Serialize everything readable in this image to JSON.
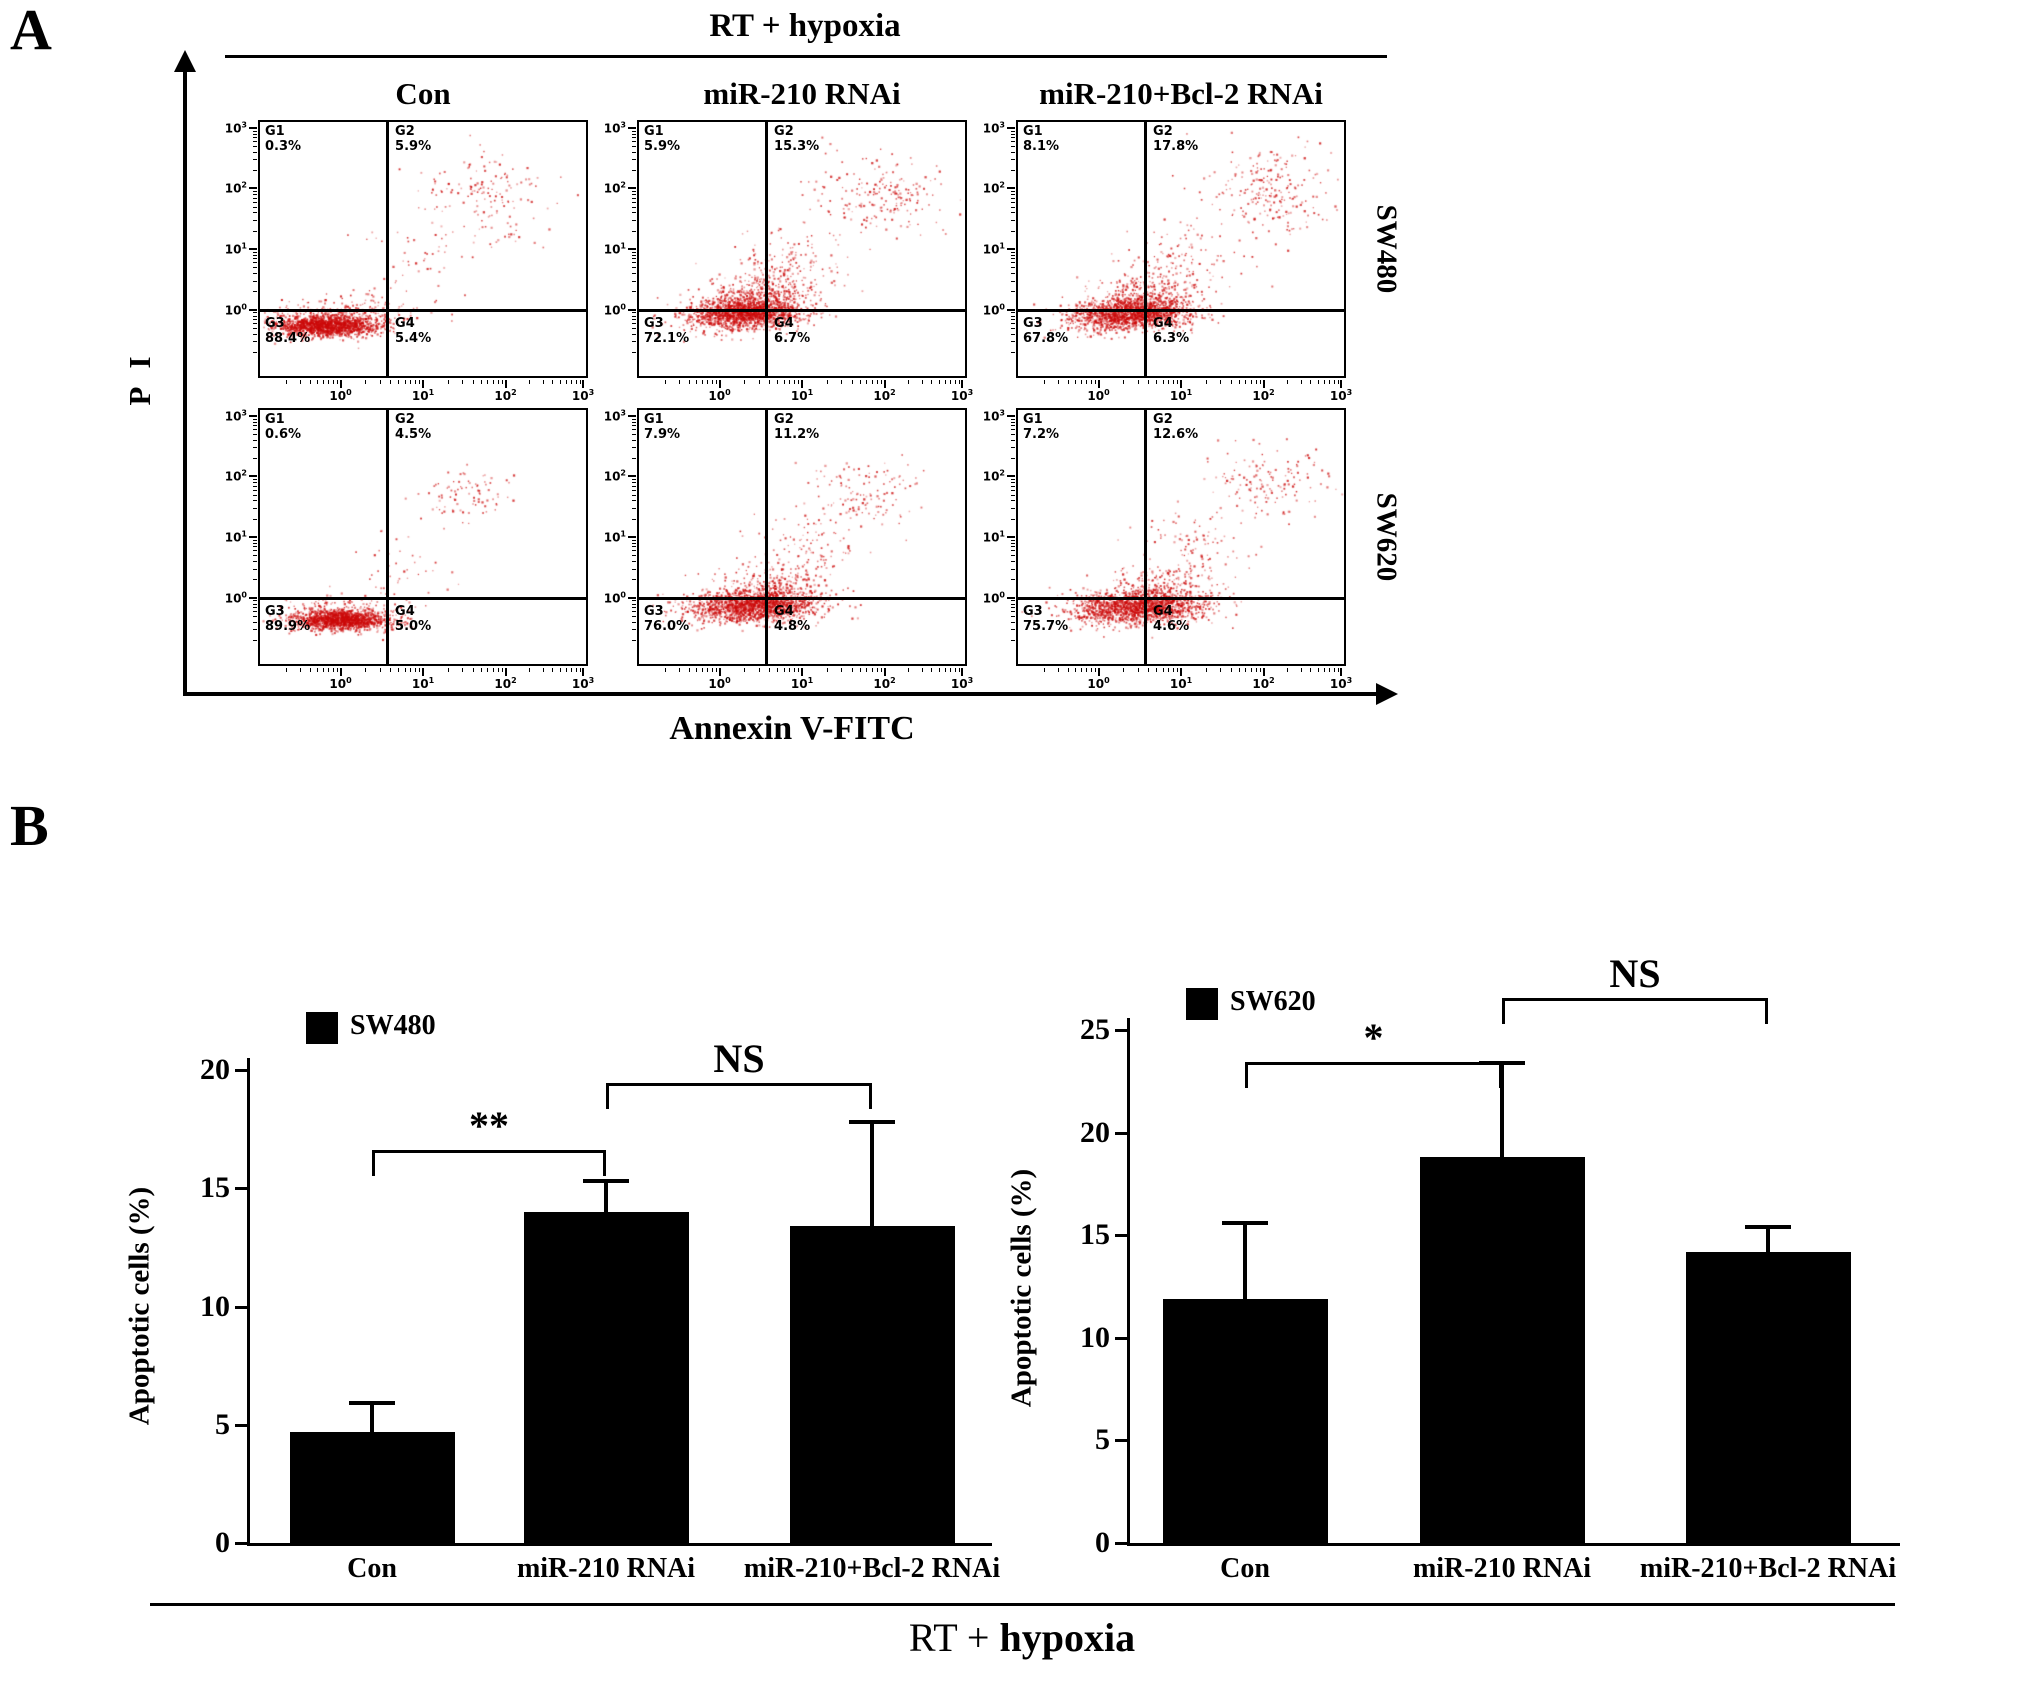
{
  "figure": {
    "panel_a_label": "A",
    "panel_b_label": "B",
    "panel_a_title": "RT + hypoxia",
    "x_axis_label": "Annexin V-FITC",
    "y_axis_label": "P I",
    "bottom_label_prefix": "RT + ",
    "bottom_label_bold": "hypoxia"
  },
  "chart_data": [
    {
      "type": "scatter",
      "name": "flow_cytometry_apoptosis_panel",
      "title": "RT + hypoxia",
      "xlabel": "Annexin V-FITC",
      "ylabel": "P I",
      "x_scale": "log10",
      "y_scale": "log10",
      "tick_exponents": [
        0,
        1,
        2,
        3
      ],
      "columns": [
        "Con",
        "miR-210 RNAi",
        "miR-210+Bcl-2 RNAi"
      ],
      "rows": [
        "SW480",
        "SW620"
      ],
      "point_color": "#cc0a0a",
      "plots": [
        {
          "cell_line": "SW480",
          "condition": "Con",
          "quadrants": {
            "G1": "0.3%",
            "G2": "5.9%",
            "G3": "88.4%",
            "G4": "5.4%"
          },
          "clusters": [
            [
              0.2,
              0.8,
              0.08,
              0.02,
              1500
            ],
            [
              0.21,
              0.775,
              0.1,
              0.038,
              300
            ],
            [
              0.68,
              0.3,
              0.1,
              0.085,
              160
            ],
            [
              0.48,
              0.55,
              0.1,
              0.1,
              50
            ],
            [
              0.33,
              0.74,
              0.05,
              0.04,
              80
            ]
          ]
        },
        {
          "cell_line": "SW480",
          "condition": "miR-210 RNAi",
          "quadrants": {
            "G1": "5.9%",
            "G2": "15.3%",
            "G3": "72.1%",
            "G4": "6.7%"
          },
          "clusters": [
            [
              0.33,
              0.745,
              0.085,
              0.03,
              1500
            ],
            [
              0.37,
              0.675,
              0.075,
              0.045,
              350
            ],
            [
              0.46,
              0.57,
              0.08,
              0.07,
              160
            ],
            [
              0.73,
              0.295,
              0.1,
              0.08,
              210
            ],
            [
              0.25,
              0.78,
              0.08,
              0.03,
              200
            ]
          ]
        },
        {
          "cell_line": "SW480",
          "condition": "miR-210+Bcl-2 RNAi",
          "quadrants": {
            "G1": "8.1%",
            "G2": "17.8%",
            "G3": "67.8%",
            "G4": "6.3%"
          },
          "clusters": [
            [
              0.35,
              0.75,
              0.09,
              0.03,
              1500
            ],
            [
              0.4,
              0.675,
              0.075,
              0.045,
              300
            ],
            [
              0.5,
              0.55,
              0.09,
              0.08,
              120
            ],
            [
              0.77,
              0.265,
              0.095,
              0.08,
              230
            ],
            [
              0.26,
              0.785,
              0.08,
              0.03,
              180
            ]
          ]
        },
        {
          "cell_line": "SW620",
          "condition": "Con",
          "quadrants": {
            "G1": "0.6%",
            "G2": "4.5%",
            "G3": "89.9%",
            "G4": "5.0%"
          },
          "clusters": [
            [
              0.245,
              0.825,
              0.075,
              0.018,
              1400
            ],
            [
              0.25,
              0.795,
              0.09,
              0.032,
              250
            ],
            [
              0.62,
              0.33,
              0.065,
              0.055,
              85
            ],
            [
              0.42,
              0.62,
              0.08,
              0.08,
              40
            ]
          ]
        },
        {
          "cell_line": "SW620",
          "condition": "miR-210 RNAi",
          "quadrants": {
            "G1": "7.9%",
            "G2": "11.2%",
            "G3": "76.0%",
            "G4": "4.8%"
          },
          "clusters": [
            [
              0.36,
              0.765,
              0.095,
              0.03,
              1400
            ],
            [
              0.41,
              0.7,
              0.085,
              0.045,
              320
            ],
            [
              0.52,
              0.55,
              0.08,
              0.07,
              110
            ],
            [
              0.7,
              0.33,
              0.085,
              0.065,
              130
            ],
            [
              0.27,
              0.8,
              0.08,
              0.025,
              200
            ]
          ]
        },
        {
          "cell_line": "SW620",
          "condition": "miR-210+Bcl-2 RNAi",
          "quadrants": {
            "G1": "7.2%",
            "G2": "12.6%",
            "G3": "75.7%",
            "G4": "4.6%"
          },
          "clusters": [
            [
              0.38,
              0.77,
              0.095,
              0.03,
              1400
            ],
            [
              0.43,
              0.705,
              0.085,
              0.045,
              300
            ],
            [
              0.55,
              0.52,
              0.08,
              0.07,
              90
            ],
            [
              0.77,
              0.27,
              0.085,
              0.065,
              140
            ],
            [
              0.28,
              0.805,
              0.08,
              0.025,
              200
            ]
          ]
        }
      ]
    },
    {
      "type": "bar",
      "title": "SW480",
      "legend": "SW480",
      "ylabel": "Apoptotic cells (%)",
      "xlabel": "RT + hypoxia",
      "categories": [
        "Con",
        "miR-210 RNAi",
        "miR-210+Bcl-2 RNAi"
      ],
      "values": [
        4.7,
        14.0,
        13.4
      ],
      "errors": [
        1.2,
        1.3,
        4.4
      ],
      "ylim": [
        0,
        20
      ],
      "yticks": [
        0,
        5,
        10,
        15,
        20
      ],
      "bar_color": "#000000",
      "significance": [
        {
          "pair": [
            0,
            1
          ],
          "label": "**"
        },
        {
          "pair": [
            1,
            2
          ],
          "label": "NS"
        }
      ]
    },
    {
      "type": "bar",
      "title": "SW620",
      "legend": "SW620",
      "ylabel": "Apoptotic cells (%)",
      "xlabel": "RT + hypoxia",
      "categories": [
        "Con",
        "miR-210 RNAi",
        "miR-210+Bcl-2 RNAi"
      ],
      "values": [
        11.9,
        18.8,
        14.2
      ],
      "errors": [
        3.7,
        4.6,
        1.2
      ],
      "ylim": [
        0,
        25
      ],
      "yticks": [
        0,
        5,
        10,
        15,
        20,
        25
      ],
      "bar_color": "#000000",
      "significance": [
        {
          "pair": [
            0,
            1
          ],
          "label": "*"
        },
        {
          "pair": [
            1,
            2
          ],
          "label": "NS"
        }
      ]
    }
  ]
}
